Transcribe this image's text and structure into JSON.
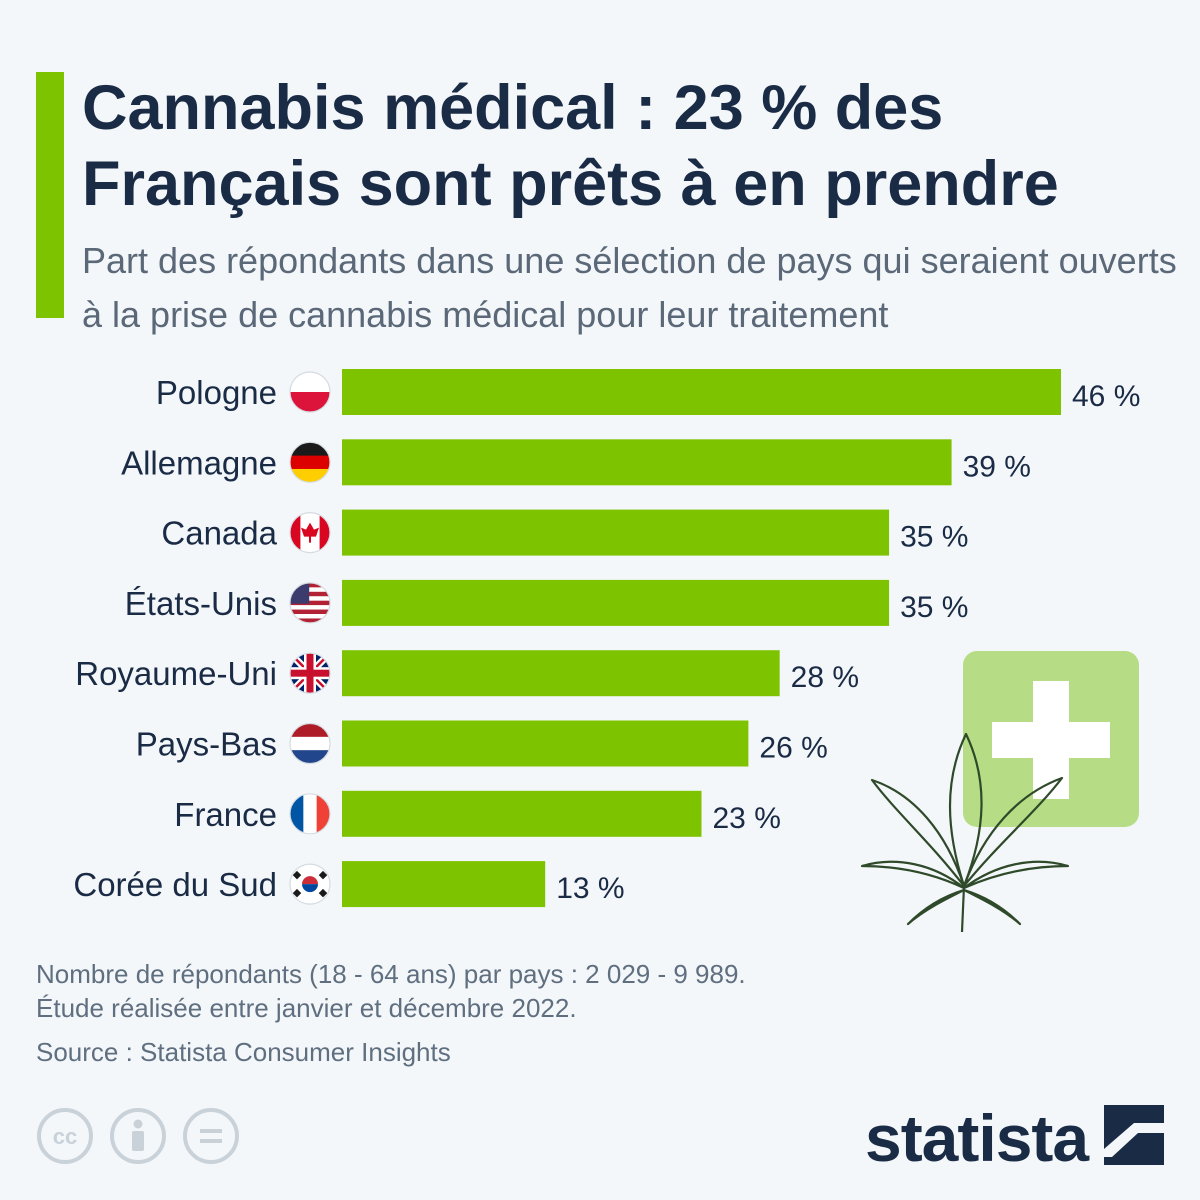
{
  "header": {
    "title": "Cannabis médical : 23 % des Français sont prêts à en prendre",
    "subtitle": "Part des répondants dans une sélection de pays qui seraient ouverts à la prise de cannabis médical pour leur traitement"
  },
  "chart_data": {
    "type": "bar",
    "orientation": "horizontal",
    "categories": [
      "Pologne",
      "Allemagne",
      "Canada",
      "États-Unis",
      "Royaume-Uni",
      "Pays-Bas",
      "France",
      "Corée du Sud"
    ],
    "values": [
      46,
      39,
      35,
      35,
      28,
      26,
      23,
      13
    ],
    "value_labels": [
      "46 %",
      "39 %",
      "35 %",
      "35 %",
      "28 %",
      "26 %",
      "23 %",
      "13 %"
    ],
    "flags": [
      "flag-poland-icon",
      "flag-germany-icon",
      "flag-canada-icon",
      "flag-usa-icon",
      "flag-uk-icon",
      "flag-netherlands-icon",
      "flag-france-icon",
      "flag-south-korea-icon"
    ],
    "unit": "%",
    "xlim": [
      0,
      46
    ],
    "grid": false,
    "legend": "none",
    "bar_color": "#7dc300"
  },
  "illustration": {
    "icons": [
      "medical-cross-icon",
      "cannabis-leaf-icon"
    ],
    "cross_bg_color": "#b6dd85",
    "leaf_color": "#2f4a2a"
  },
  "footer": {
    "note_line1": "Nombre de répondants (18 - 64 ans) par pays : 2 029 - 9 989.",
    "note_line2": "Étude réalisée entre janvier et décembre 2022.",
    "source": "Source : Statista Consumer Insights",
    "license_icons": [
      "creative-commons-icon",
      "attribution-icon",
      "no-derivatives-icon"
    ],
    "brand": "statista",
    "brand_logo": "statista-logo-icon"
  },
  "colors": {
    "accent": "#7dc300",
    "title": "#1a2b45",
    "subtitle": "#5a6878",
    "note": "#5f6f80"
  }
}
